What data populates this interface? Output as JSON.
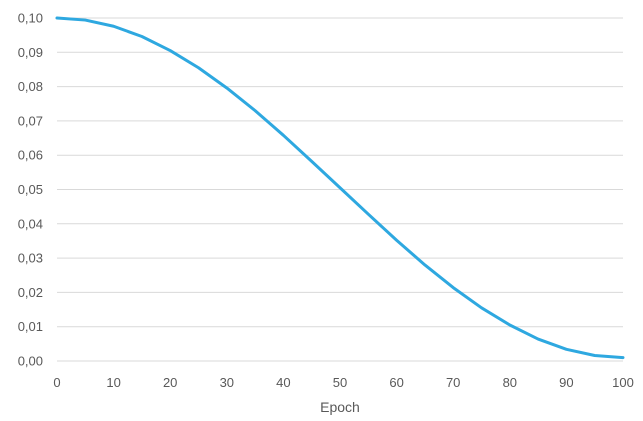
{
  "chart_data": {
    "type": "line",
    "title": "",
    "xlabel": "Epoch",
    "ylabel": "",
    "xlim": [
      0,
      100
    ],
    "ylim": [
      0,
      0.1
    ],
    "x_ticks": [
      "0",
      "10",
      "20",
      "30",
      "40",
      "50",
      "60",
      "70",
      "80",
      "90",
      "100"
    ],
    "y_ticks": [
      "0,00",
      "0,01",
      "0,02",
      "0,03",
      "0,04",
      "0,05",
      "0,06",
      "0,07",
      "0,08",
      "0,09",
      "0,10"
    ],
    "grid": "horizontal",
    "legend": "none",
    "line_color": "#2ea8e0",
    "grid_color": "#d9d9d9",
    "series": [
      {
        "x": [
          0,
          5,
          10,
          15,
          20,
          25,
          30,
          35,
          40,
          45,
          50,
          55,
          60,
          65,
          70,
          75,
          80,
          85,
          90,
          95,
          100
        ],
        "values": [
          0.1,
          0.0994,
          0.0976,
          0.0946,
          0.0905,
          0.0855,
          0.0796,
          0.073,
          0.0658,
          0.0582,
          0.0505,
          0.0428,
          0.0352,
          0.028,
          0.0214,
          0.0155,
          0.0105,
          0.0064,
          0.0034,
          0.0016,
          0.001
        ]
      }
    ]
  }
}
